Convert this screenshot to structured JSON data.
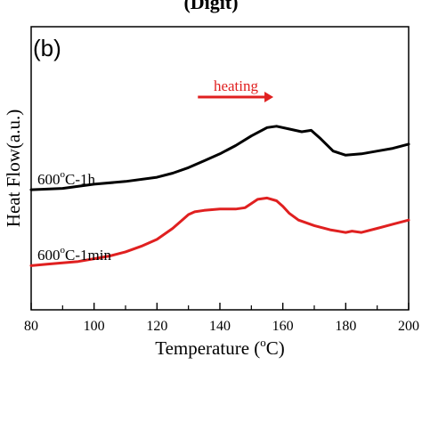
{
  "chart_data": {
    "type": "line",
    "panel_label": "(b)",
    "top_text_fragment": "(Digit)",
    "xlabel": "Temperature (",
    "xlabel_sup": "o",
    "xlabel_suffix": "C)",
    "ylabel": "Heat Flow(a.u.)",
    "xlim": [
      80,
      200
    ],
    "x_ticks": [
      80,
      100,
      120,
      140,
      160,
      180,
      200
    ],
    "y_ticks_shown": false,
    "grid": false,
    "annotation": {
      "text": "heating",
      "color": "#e02020",
      "arrow_from_x": 133,
      "arrow_to_x": 157
    },
    "series": [
      {
        "name_main": "600",
        "name_sup": "o",
        "name_rest": "C-1h",
        "color": "#000000",
        "x": [
          80,
          90,
          100,
          110,
          120,
          125,
          130,
          135,
          140,
          145,
          150,
          155,
          158,
          162,
          166,
          169,
          172,
          176,
          180,
          185,
          190,
          195,
          200
        ],
        "y": [
          0.58,
          0.59,
          0.62,
          0.64,
          0.67,
          0.7,
          0.74,
          0.79,
          0.84,
          0.9,
          0.97,
          1.03,
          1.04,
          1.02,
          1.0,
          1.01,
          0.95,
          0.86,
          0.83,
          0.84,
          0.86,
          0.88,
          0.91
        ]
      },
      {
        "name_main": "600",
        "name_sup": "o",
        "name_rest": "C-1min",
        "color": "#e02020",
        "x": [
          80,
          85,
          90,
          95,
          100,
          105,
          110,
          115,
          120,
          125,
          128,
          130,
          132,
          135,
          140,
          145,
          148,
          150,
          152,
          155,
          158,
          160,
          162,
          165,
          170,
          175,
          180,
          182,
          185,
          190,
          195,
          200
        ],
        "y": [
          0.03,
          0.04,
          0.05,
          0.06,
          0.08,
          0.1,
          0.13,
          0.17,
          0.22,
          0.3,
          0.36,
          0.4,
          0.42,
          0.43,
          0.44,
          0.44,
          0.45,
          0.48,
          0.51,
          0.52,
          0.5,
          0.46,
          0.41,
          0.36,
          0.32,
          0.29,
          0.27,
          0.28,
          0.27,
          0.3,
          0.33,
          0.36
        ]
      }
    ]
  }
}
